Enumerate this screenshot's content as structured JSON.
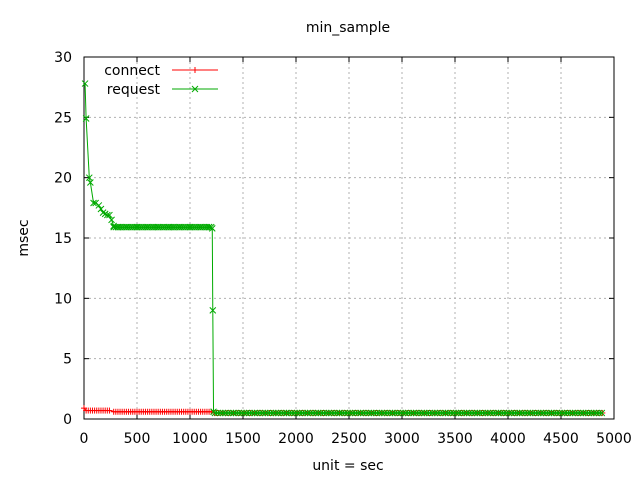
{
  "chart_data": {
    "type": "line",
    "title": "min_sample",
    "xlabel": "unit = sec",
    "ylabel": "msec",
    "xlim": [
      0,
      5000
    ],
    "ylim": [
      0,
      30
    ],
    "grid": true,
    "legend_position": "top-left",
    "x_ticks": [
      0,
      500,
      1000,
      1500,
      2000,
      2500,
      3000,
      3500,
      4000,
      4500,
      5000
    ],
    "y_ticks": [
      0,
      5,
      10,
      15,
      20,
      25,
      30
    ],
    "series": [
      {
        "name": "connect",
        "color": "#ff0000",
        "marker": "plus",
        "mode": "dense",
        "segments": [
          {
            "x_start": 0,
            "x_end": 1,
            "y": 0.9
          },
          {
            "x_start": 20,
            "x_end": 250,
            "y": 0.7
          },
          {
            "x_start": 280,
            "x_end": 1210,
            "y": 0.6
          },
          {
            "x_start": 1230,
            "x_end": 4900,
            "y": 0.5
          }
        ],
        "marker_step": 20
      },
      {
        "name": "request",
        "color": "#00aa00",
        "marker": "cross",
        "mode": "mixed",
        "points": [
          [
            10,
            27.8
          ],
          [
            20,
            24.9
          ],
          [
            50,
            20.0
          ],
          [
            60,
            19.6
          ],
          [
            90,
            17.9
          ],
          [
            110,
            17.9
          ],
          [
            140,
            17.7
          ],
          [
            160,
            17.4
          ],
          [
            180,
            17.1
          ],
          [
            200,
            17.0
          ],
          [
            220,
            16.9
          ],
          [
            240,
            16.9
          ],
          [
            260,
            16.5
          ],
          [
            280,
            16.0
          ],
          [
            320,
            15.9
          ],
          [
            400,
            15.9
          ],
          [
            500,
            15.9
          ],
          [
            600,
            15.9
          ],
          [
            700,
            15.9
          ],
          [
            800,
            15.9
          ],
          [
            900,
            15.9
          ],
          [
            1000,
            15.9
          ],
          [
            1100,
            15.9
          ],
          [
            1180,
            15.9
          ],
          [
            1210,
            15.8
          ],
          [
            1215,
            9.0
          ],
          [
            1222,
            0.6
          ],
          [
            1235,
            0.5
          ],
          [
            4900,
            0.5
          ]
        ],
        "dense_from": 1235,
        "dense_to": 4900,
        "dense_y": 0.5,
        "marker_step": 25
      }
    ]
  }
}
